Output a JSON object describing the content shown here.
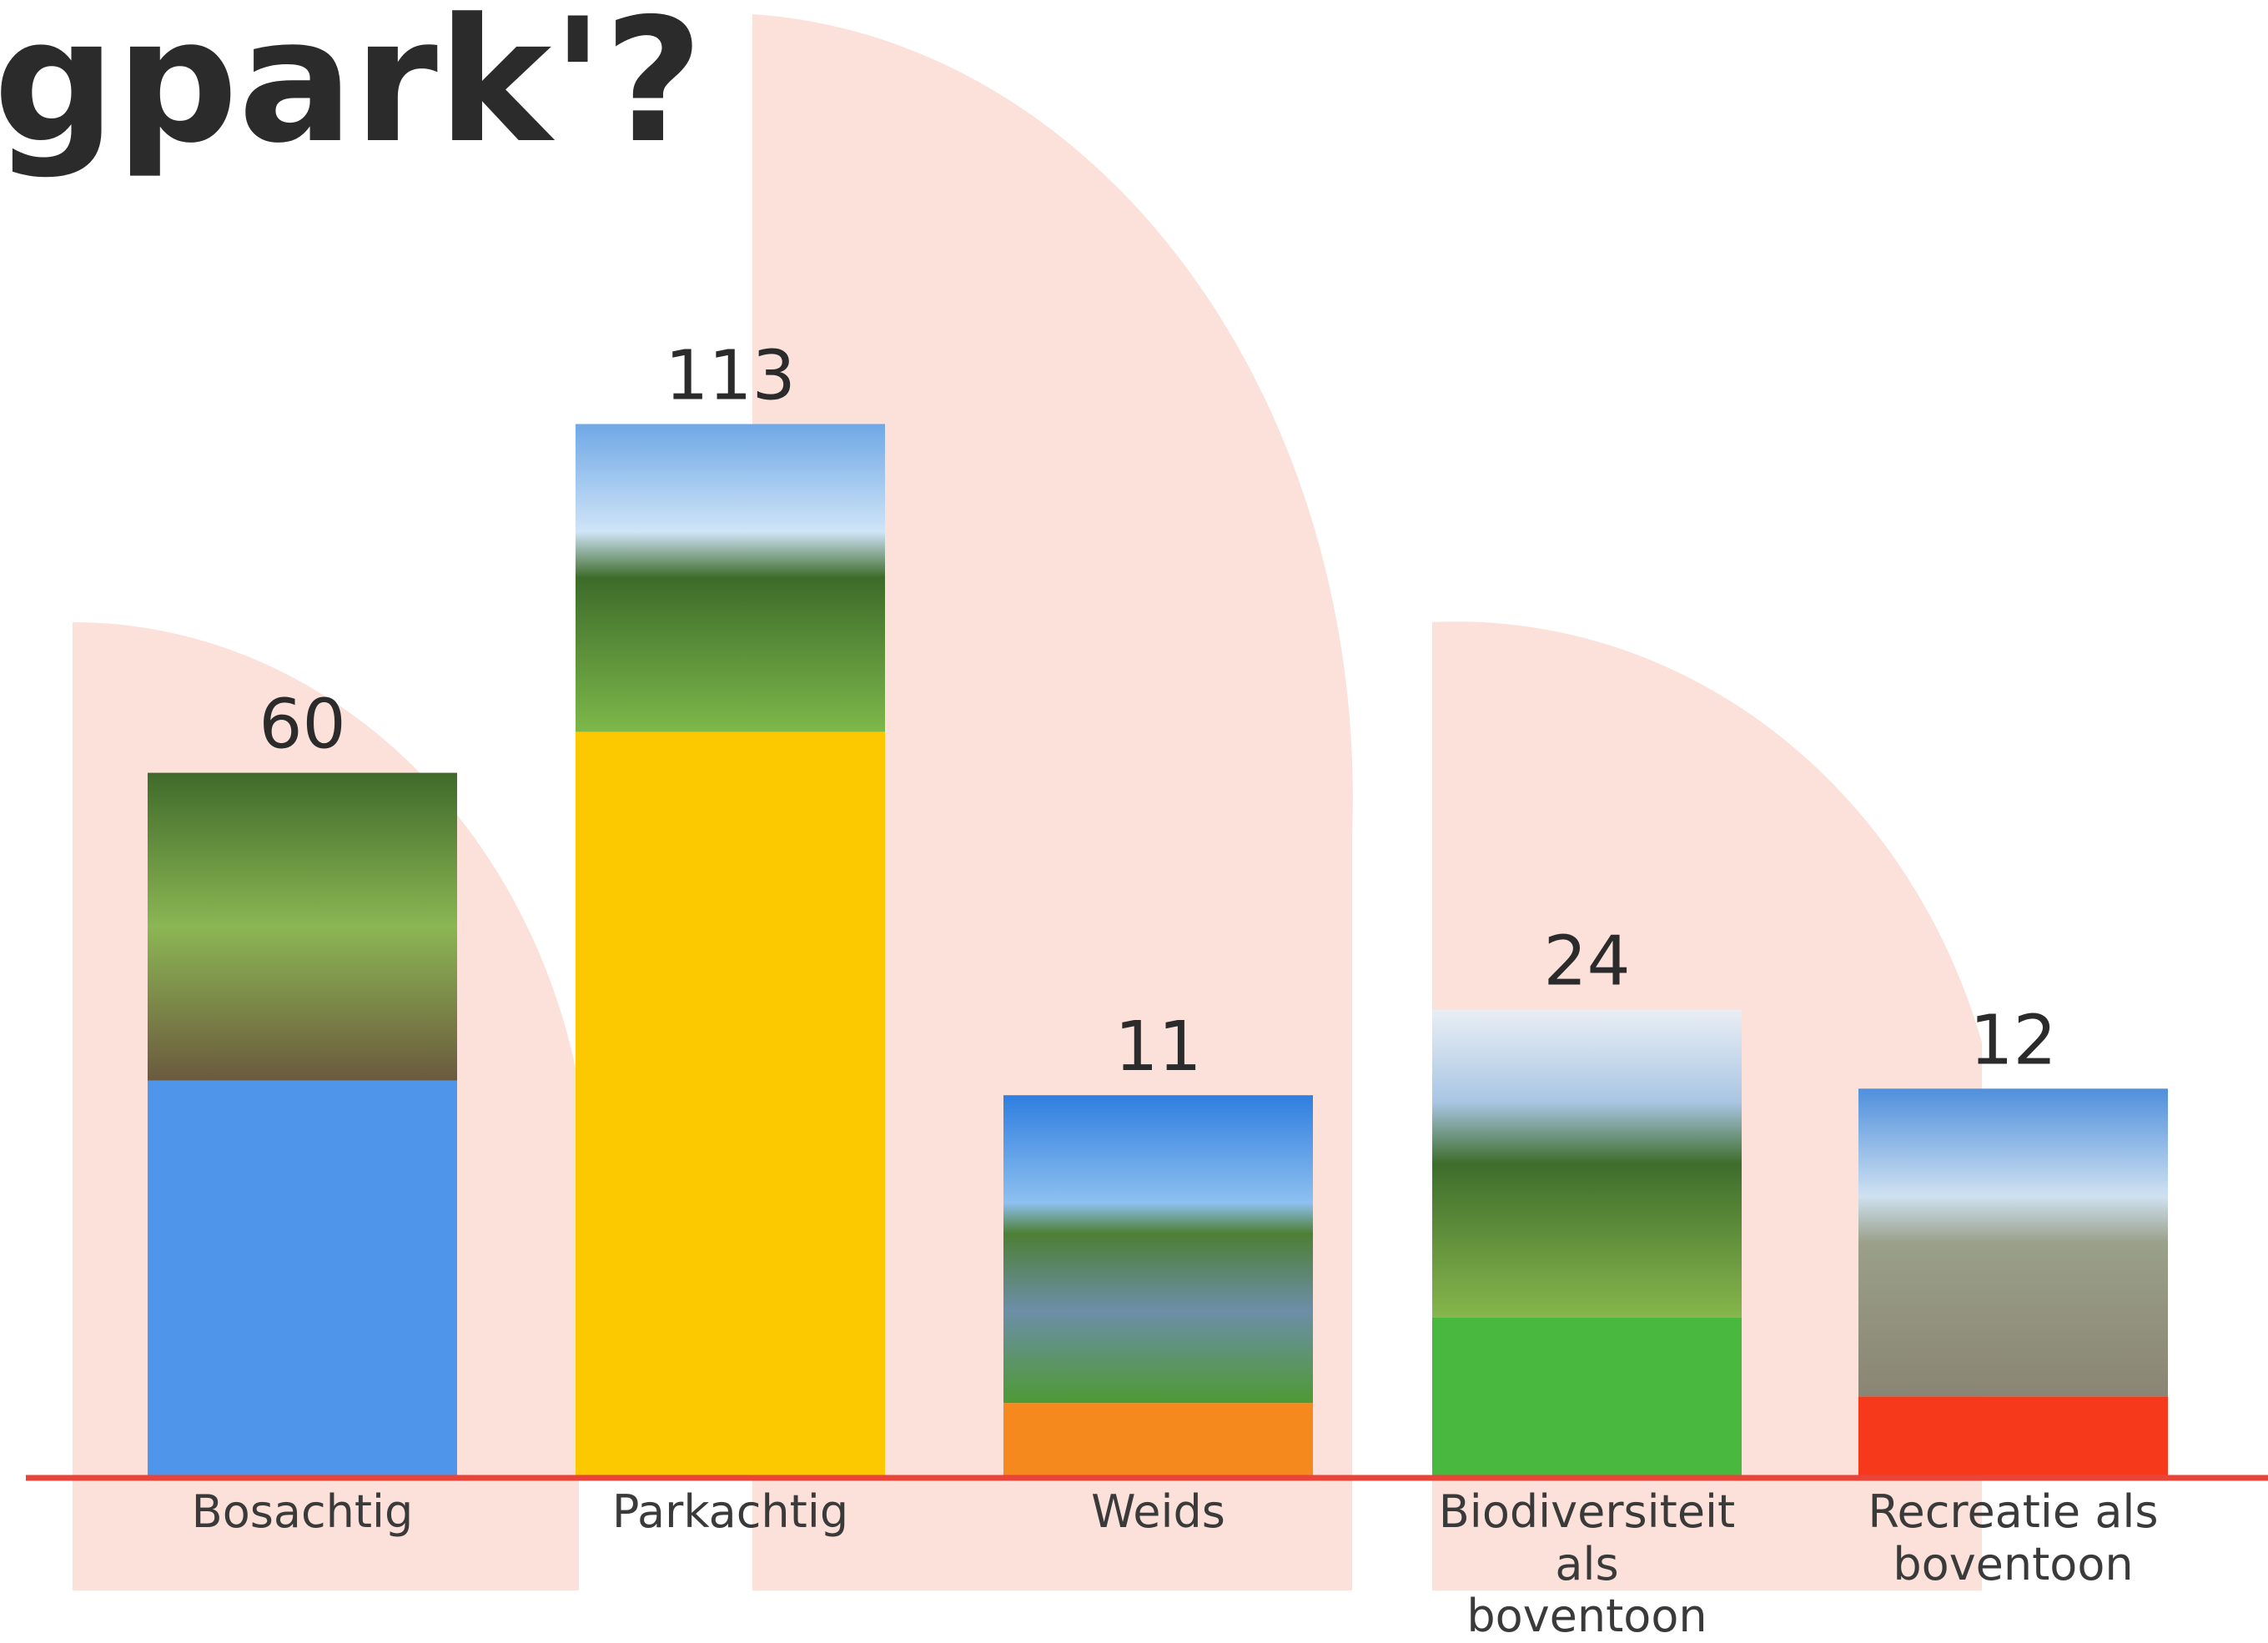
{
  "chart_data": {
    "type": "bar",
    "title": "gpark'?",
    "categories": [
      "Bosachtig",
      "Parkachtig",
      "Weids",
      "Biodiversiteit als boventoon",
      "Recreatie als boventoon"
    ],
    "values": [
      60,
      113,
      11,
      24,
      12
    ],
    "colors": [
      "#4f95ea",
      "#fcc800",
      "#f5891e",
      "#48b83e",
      "#f7391b"
    ],
    "axis_color": "#e8443a"
  }
}
